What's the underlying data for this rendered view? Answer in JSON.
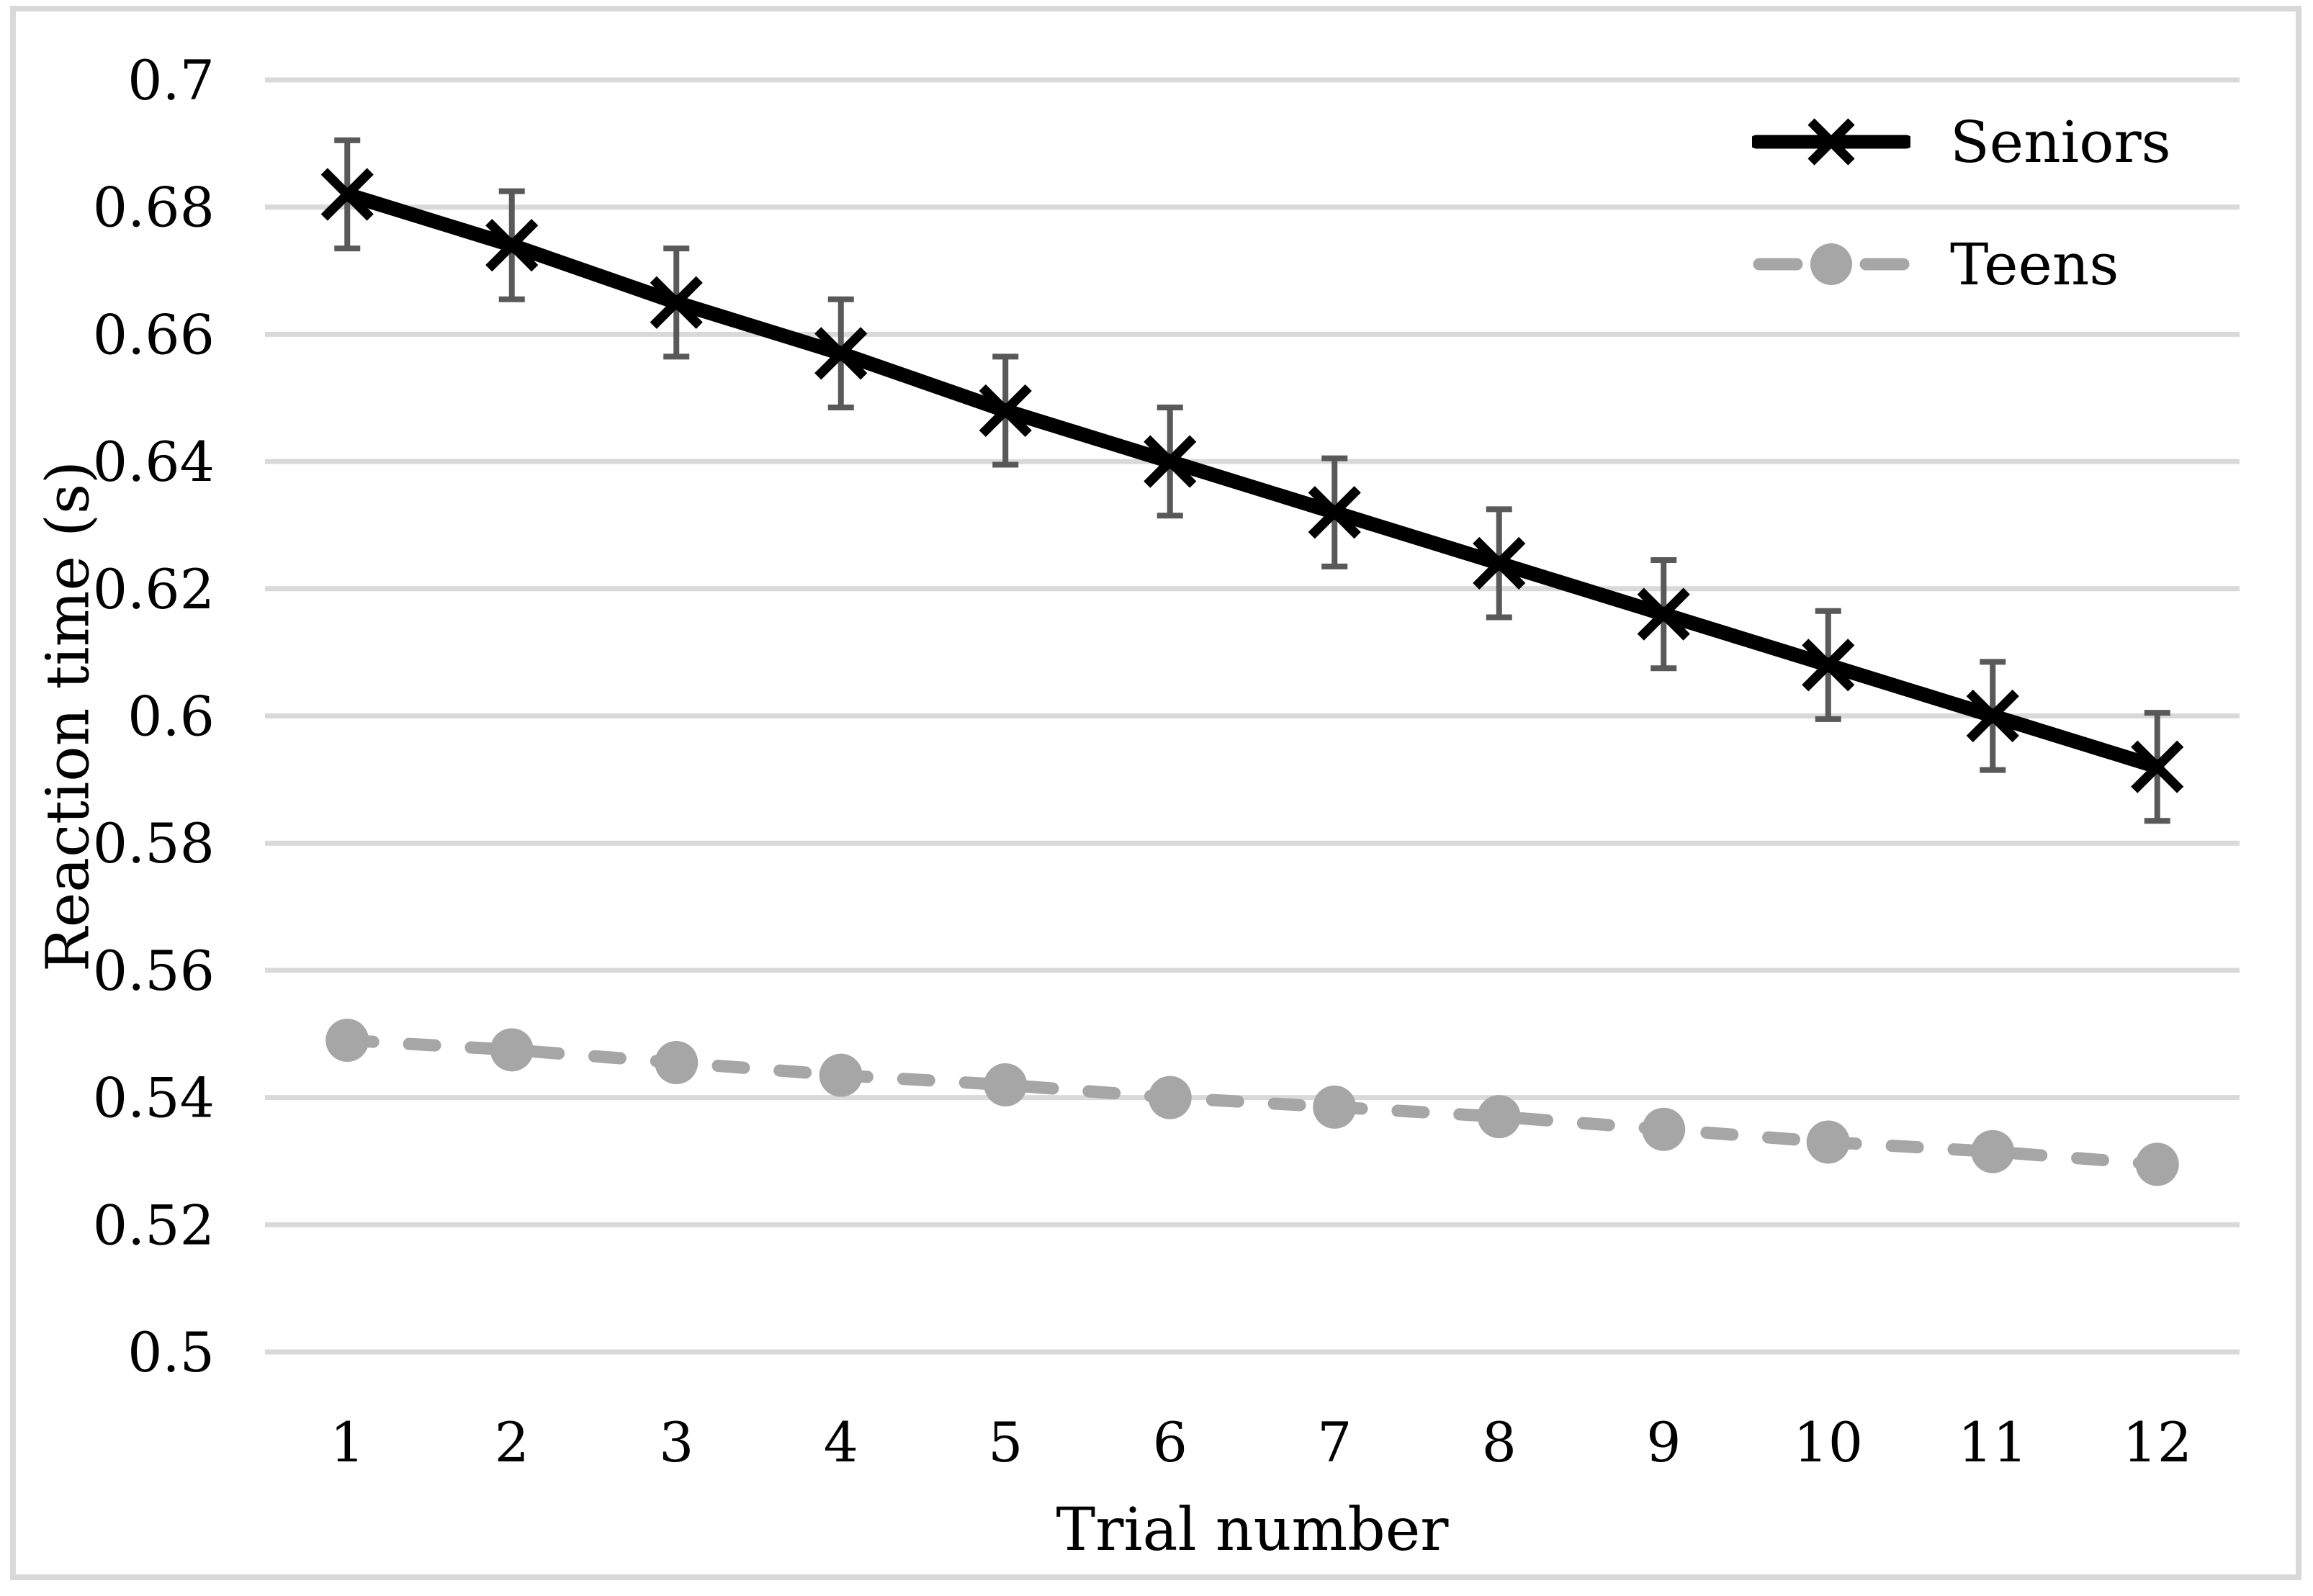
{
  "figure": {
    "background": "#ffffff",
    "border_color": "#d9d9d9"
  },
  "chart_data": {
    "type": "line",
    "title": "",
    "xlabel": "Trial number",
    "ylabel": "Reaction time (s)",
    "x": [
      1,
      2,
      3,
      4,
      5,
      6,
      7,
      8,
      9,
      10,
      11,
      12
    ],
    "x_tick_labels": [
      "1",
      "2",
      "3",
      "4",
      "5",
      "6",
      "7",
      "8",
      "9",
      "10",
      "11",
      "12"
    ],
    "ylim": [
      0.5,
      0.7
    ],
    "y_ticks": [
      0.7,
      0.68,
      0.66,
      0.64,
      0.62,
      0.6,
      0.58,
      0.56,
      0.54,
      0.52,
      0.5
    ],
    "y_tick_labels": [
      "0.7",
      "0.68",
      "0.66",
      "0.64",
      "0.62",
      "0.6",
      "0.58",
      "0.56",
      "0.54",
      "0.52",
      "0.5"
    ],
    "grid": "horizontal",
    "grid_color": "#d9d9d9",
    "legend_position": "top-right-inside",
    "series": [
      {
        "name": "Seniors",
        "values": [
          0.682,
          0.674,
          0.665,
          0.657,
          0.648,
          0.64,
          0.632,
          0.624,
          0.616,
          0.608,
          0.6,
          0.592
        ],
        "error": 0.0085,
        "color": "#000000",
        "error_color": "#595959",
        "marker": "x",
        "line_style": "solid"
      },
      {
        "name": "Teens",
        "values": [
          0.549,
          0.5475,
          0.5455,
          0.5435,
          0.542,
          0.54,
          0.5385,
          0.537,
          0.535,
          0.533,
          0.5315,
          0.5295
        ],
        "error": 0,
        "color": "#a6a6a6",
        "error_color": "#a6a6a6",
        "marker": "circle",
        "line_style": "dashed"
      }
    ]
  },
  "legend": {
    "items": [
      {
        "label": "Seniors"
      },
      {
        "label": "Teens"
      }
    ]
  }
}
